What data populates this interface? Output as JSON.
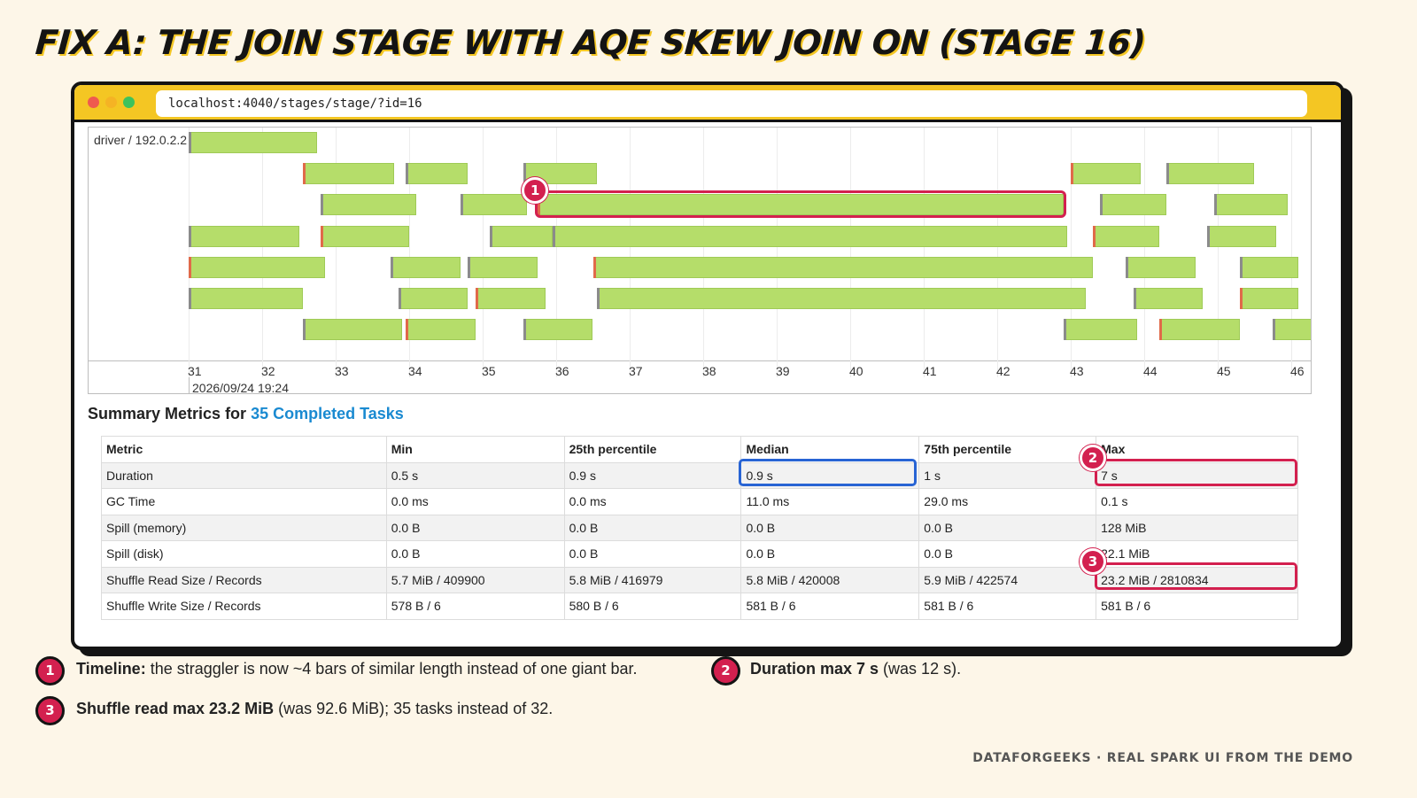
{
  "title": "FIX A: THE JOIN STAGE WITH AQE SKEW JOIN ON (STAGE 16)",
  "browser": {
    "url": "localhost:4040/stages/stage/?id=16"
  },
  "timeline": {
    "lane_label": "driver / 192.0.2.2",
    "ticks": [
      "31",
      "32",
      "33",
      "34",
      "35",
      "36",
      "37",
      "38",
      "39",
      "40",
      "41",
      "42",
      "43",
      "44",
      "45",
      "46"
    ],
    "date_label": "2026/09/24 19:24",
    "x_range": [
      31,
      46.2
    ],
    "rows": [
      [
        [
          31.0,
          32.75
        ]
      ],
      [
        [
          32.55,
          33.8
        ],
        [
          33.95,
          34.8
        ],
        [
          35.55,
          36.55
        ],
        [
          43.0,
          43.95
        ],
        [
          44.3,
          45.5
        ]
      ],
      [
        [
          32.8,
          34.1
        ],
        [
          34.7,
          35.6
        ],
        [
          35.75,
          42.9
        ],
        [
          43.4,
          44.3
        ],
        [
          44.95,
          45.95
        ]
      ],
      [
        [
          31.0,
          32.5
        ],
        [
          32.8,
          34.0
        ],
        [
          35.1,
          35.95
        ],
        [
          35.95,
          42.95
        ],
        [
          43.3,
          44.2
        ],
        [
          44.85,
          45.8
        ]
      ],
      [
        [
          31.0,
          32.85
        ],
        [
          33.75,
          34.7
        ],
        [
          34.8,
          35.75
        ],
        [
          36.5,
          43.3
        ],
        [
          43.75,
          44.7
        ],
        [
          45.3,
          46.1
        ]
      ],
      [
        [
          31.0,
          32.55
        ],
        [
          33.85,
          34.8
        ],
        [
          34.9,
          35.85
        ],
        [
          36.55,
          43.2
        ],
        [
          43.85,
          44.8
        ],
        [
          45.3,
          46.1
        ]
      ],
      [
        [
          32.55,
          33.9
        ],
        [
          33.95,
          34.9
        ],
        [
          35.55,
          36.5
        ],
        [
          42.9,
          43.9
        ],
        [
          44.2,
          45.3
        ],
        [
          45.75,
          46.3
        ]
      ]
    ],
    "straggler": {
      "marker": "1"
    }
  },
  "summary": {
    "heading_prefix": "Summary Metrics for ",
    "heading_link": "35 Completed Tasks",
    "columns": [
      "Metric",
      "Min",
      "25th percentile",
      "Median",
      "75th percentile",
      "Max"
    ],
    "rows": [
      [
        "Duration",
        "0.5 s",
        "0.9 s",
        "0.9 s",
        "1 s",
        "7 s"
      ],
      [
        "GC Time",
        "0.0 ms",
        "0.0 ms",
        "11.0 ms",
        "29.0 ms",
        "0.1 s"
      ],
      [
        "Spill (memory)",
        "0.0 B",
        "0.0 B",
        "0.0 B",
        "0.0 B",
        "128 MiB"
      ],
      [
        "Spill (disk)",
        "0.0 B",
        "0.0 B",
        "0.0 B",
        "0.0 B",
        "22.1 MiB"
      ],
      [
        "Shuffle Read Size / Records",
        "5.7 MiB / 409900",
        "5.8 MiB / 416979",
        "5.8 MiB / 420008",
        "5.9 MiB / 422574",
        "23.2 MiB / 2810834"
      ],
      [
        "Shuffle Write Size / Records",
        "578 B / 6",
        "580 B / 6",
        "581 B / 6",
        "581 B / 6",
        "581 B / 6"
      ]
    ],
    "markers": {
      "duration_max": "2",
      "shuffle_read_max": "3"
    }
  },
  "notes": [
    {
      "num": "1",
      "bold": "Timeline:",
      "text": " the straggler is now ~4 bars of similar length instead of one giant bar."
    },
    {
      "num": "2",
      "bold": "Duration max 7 s",
      "text": " (was 12 s)."
    },
    {
      "num": "3",
      "bold": "Shuffle read max 23.2 MiB",
      "text": " (was 92.6 MiB); 35 tasks instead of 32."
    }
  ],
  "footer": "DATAFORGEEKS · REAL SPARK UI FROM THE DEMO",
  "colors": {
    "accent_yellow": "#f4c623",
    "marker_red": "#d3204f",
    "median_blue": "#2864d4",
    "bar_green": "#b5dd6a",
    "link_blue": "#1a8ad1"
  }
}
